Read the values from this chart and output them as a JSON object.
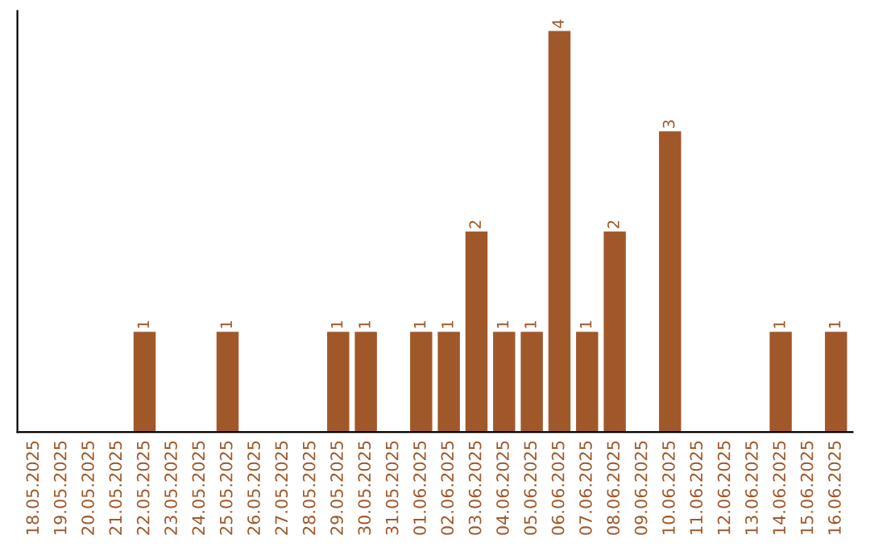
{
  "chart_data": {
    "type": "bar",
    "categories": [
      "18.05.2025",
      "19.05.2025",
      "20.05.2025",
      "21.05.2025",
      "22.05.2025",
      "23.05.2025",
      "24.05.2025",
      "25.05.2025",
      "26.05.2025",
      "27.05.2025",
      "28.05.2025",
      "29.05.2025",
      "30.05.2025",
      "31.05.2025",
      "01.06.2025",
      "02.06.2025",
      "03.06.2025",
      "04.06.2025",
      "05.06.2025",
      "06.06.2025",
      "07.06.2025",
      "08.06.2025",
      "09.06.2025",
      "10.06.2025",
      "11.06.2025",
      "12.06.2025",
      "13.06.2025",
      "14.06.2025",
      "15.06.2025",
      "16.06.2025"
    ],
    "values": [
      0,
      0,
      0,
      0,
      1,
      0,
      0,
      1,
      0,
      0,
      0,
      1,
      1,
      0,
      1,
      1,
      2,
      1,
      1,
      4,
      1,
      2,
      0,
      3,
      0,
      0,
      0,
      1,
      0,
      1
    ],
    "value_labels": [
      null,
      null,
      null,
      null,
      "1",
      null,
      null,
      "1",
      null,
      null,
      null,
      "1",
      "1",
      null,
      "1",
      "1",
      "2",
      "1",
      "1",
      "4",
      "1",
      "2",
      null,
      "3",
      null,
      null,
      null,
      "1",
      null,
      "1"
    ],
    "color": "#a0582a",
    "tick_labels": "x",
    "grid": false
  }
}
